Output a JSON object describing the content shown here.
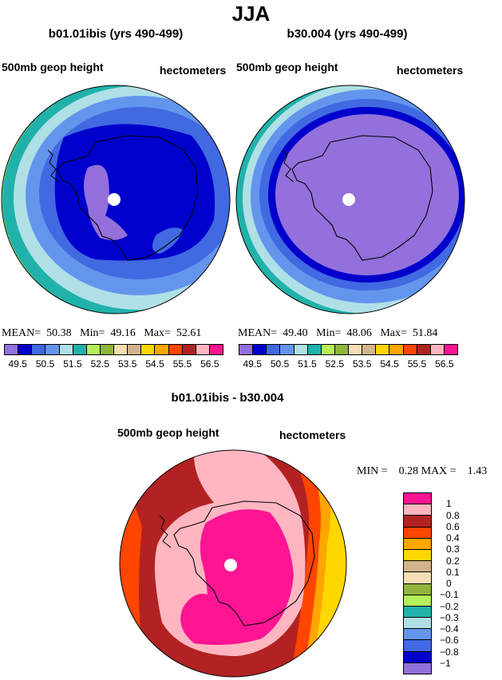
{
  "title": "JJA",
  "panels": [
    {
      "title": "b01.01ibis (yrs 490-499)",
      "left_label": "500mb geop height",
      "right_label": "hectometers",
      "stats": {
        "mean_label": "MEAN=",
        "mean": "50.38",
        "min_label": "Min=",
        "min": "49.16",
        "max_label": "Max=",
        "max": "52.61"
      }
    },
    {
      "title": "b30.004 (yrs 490-499)",
      "left_label": "500mb geop height",
      "right_label": "hectometers",
      "stats": {
        "mean_label": "MEAN=",
        "mean": "49.40",
        "min_label": "Min=",
        "min": "48.06",
        "max_label": "Max=",
        "max": "51.84"
      }
    },
    {
      "title": "b01.01ibis - b30.004",
      "left_label": "500mb geop height",
      "right_label": "hectometers",
      "stats": {
        "min_label": "MIN =",
        "min": "0.28",
        "max_label": "MAX =",
        "max": "1.43"
      }
    }
  ],
  "colorbar_top": {
    "colors": [
      "#9370db",
      "#0000cd",
      "#4169e1",
      "#6495ed",
      "#b0e0e6",
      "#20b2aa",
      "#b4ee5a",
      "#8fb53a",
      "#f5deb3",
      "#d2b48c",
      "#ffd700",
      "#ffa500",
      "#ff4500",
      "#b22222",
      "#ffb6c1",
      "#ff1493"
    ],
    "labels": [
      "49.5",
      "50.5",
      "51.5",
      "52.5",
      "53.5",
      "54.5",
      "55.5",
      "56.5"
    ]
  },
  "colorbar_diff": {
    "colors": [
      "#ff1493",
      "#ffb6c1",
      "#b22222",
      "#ff4500",
      "#ffa500",
      "#ffd700",
      "#d2b48c",
      "#f5deb3",
      "#8fb53a",
      "#b4ee5a",
      "#20b2aa",
      "#b0e0e6",
      "#6495ed",
      "#4169e1",
      "#0000cd",
      "#9370db"
    ],
    "labels": [
      "1",
      "0.8",
      "0.6",
      "0.4",
      "0.3",
      "0.2",
      "0.1",
      "0",
      "−0.1",
      "−0.2",
      "−0.3",
      "−0.4",
      "−0.6",
      "−0.8",
      "−1"
    ]
  }
}
